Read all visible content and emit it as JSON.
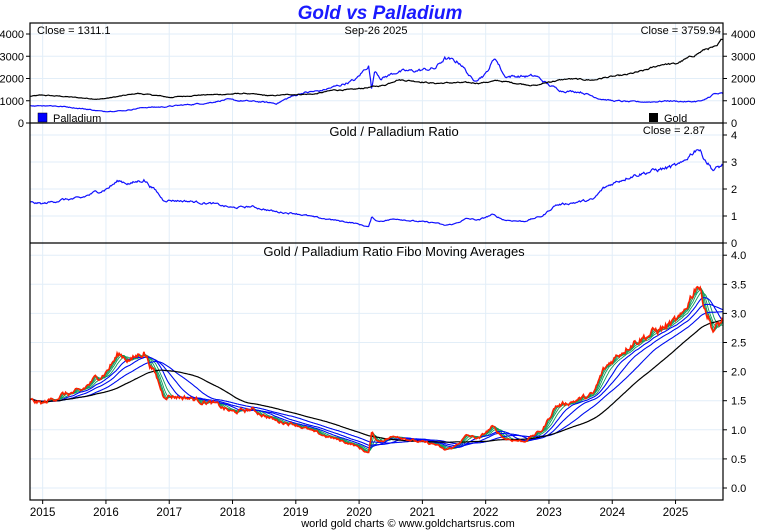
{
  "chart_data": [
    {
      "type": "line",
      "title": "Gold vs Palladium",
      "date_label": "Sep-26  2025",
      "left_close_label": "Close = 1311.1",
      "right_close_label": "Close = 3759.94",
      "x_range": [
        2014.8,
        2025.75
      ],
      "ylim": [
        0,
        4000
      ],
      "yticks": [
        0,
        1000,
        2000,
        3000,
        4000
      ],
      "ytick_labels": [
        "0",
        "1000",
        "2000",
        "3000",
        "4000"
      ],
      "grid": true,
      "legend": [
        {
          "name": "Palladium",
          "color": "#0000ff",
          "position": "bottom-left"
        },
        {
          "name": "Gold",
          "color": "#000000",
          "position": "bottom-right"
        }
      ],
      "series": [
        {
          "name": "Gold",
          "color": "#000000",
          "x": [
            2014.8,
            2015.0,
            2015.3,
            2015.6,
            2015.9,
            2016.1,
            2016.5,
            2016.9,
            2017.0,
            2017.5,
            2017.9,
            2018.2,
            2018.6,
            2018.9,
            2019.3,
            2019.6,
            2019.9,
            2020.2,
            2020.4,
            2020.6,
            2020.9,
            2021.2,
            2021.5,
            2021.9,
            2022.2,
            2022.5,
            2022.8,
            2023.0,
            2023.3,
            2023.7,
            2023.9,
            2024.2,
            2024.5,
            2024.8,
            2025.0,
            2025.3,
            2025.5,
            2025.65,
            2025.74
          ],
          "y": [
            1200,
            1250,
            1200,
            1130,
            1070,
            1150,
            1330,
            1200,
            1150,
            1260,
            1290,
            1330,
            1220,
            1280,
            1300,
            1480,
            1500,
            1620,
            1700,
            1950,
            1880,
            1780,
            1810,
            1800,
            1900,
            1780,
            1680,
            1850,
            1980,
            1930,
            2050,
            2150,
            2350,
            2650,
            2650,
            3050,
            3350,
            3400,
            3760
          ]
        },
        {
          "name": "Palladium",
          "color": "#0000ff",
          "x": [
            2014.8,
            2015.1,
            2015.4,
            2015.7,
            2015.95,
            2016.3,
            2016.6,
            2016.9,
            2017.2,
            2017.6,
            2017.9,
            2018.1,
            2018.4,
            2018.7,
            2018.9,
            2019.1,
            2019.4,
            2019.7,
            2019.95,
            2020.15,
            2020.2,
            2020.25,
            2020.35,
            2020.6,
            2020.9,
            2021.2,
            2021.35,
            2021.6,
            2021.8,
            2022.0,
            2022.15,
            2022.3,
            2022.5,
            2022.8,
            2023.0,
            2023.2,
            2023.5,
            2023.8,
            2024.0,
            2024.3,
            2024.6,
            2024.9,
            2025.2,
            2025.45,
            2025.6,
            2025.74
          ],
          "y": [
            780,
            790,
            720,
            620,
            520,
            560,
            700,
            720,
            800,
            900,
            1050,
            1000,
            960,
            880,
            1150,
            1350,
            1450,
            1700,
            1950,
            2600,
            1500,
            2400,
            2000,
            2300,
            2350,
            2450,
            2900,
            2700,
            1900,
            2200,
            2950,
            2100,
            2100,
            2100,
            1700,
            1450,
            1400,
            1100,
            1000,
            950,
            950,
            1000,
            950,
            1000,
            1300,
            1311
          ]
        }
      ]
    },
    {
      "type": "line",
      "title": "Gold / Palladium Ratio",
      "close_label": "Close = 2.87",
      "ylim": [
        0,
        4.5
      ],
      "yticks": [
        0,
        1,
        2,
        3,
        4
      ],
      "ytick_labels": [
        "0",
        "1",
        "2",
        "3",
        "4"
      ],
      "grid": true,
      "series": [
        {
          "name": "Gold / Palladium Ratio",
          "color": "#0000ff",
          "x": [
            2014.8,
            2015.0,
            2015.3,
            2015.6,
            2015.8,
            2016.0,
            2016.2,
            2016.4,
            2016.6,
            2016.8,
            2016.9,
            2017.3,
            2017.7,
            2018.0,
            2018.3,
            2018.7,
            2019.0,
            2019.3,
            2019.6,
            2019.9,
            2020.15,
            2020.2,
            2020.3,
            2020.6,
            2020.9,
            2021.2,
            2021.35,
            2021.5,
            2021.7,
            2021.9,
            2022.1,
            2022.3,
            2022.6,
            2022.9,
            2023.1,
            2023.4,
            2023.7,
            2023.85,
            2024.0,
            2024.3,
            2024.6,
            2024.9,
            2025.1,
            2025.2,
            2025.35,
            2025.5,
            2025.6,
            2025.74
          ],
          "y": [
            1.5,
            1.45,
            1.6,
            1.65,
            1.85,
            2.0,
            2.3,
            2.2,
            2.35,
            1.9,
            1.6,
            1.55,
            1.45,
            1.3,
            1.35,
            1.15,
            1.1,
            0.95,
            0.85,
            0.75,
            0.6,
            0.95,
            0.8,
            0.9,
            0.8,
            0.75,
            0.65,
            0.7,
            0.9,
            0.85,
            1.05,
            0.85,
            0.8,
            1.0,
            1.4,
            1.5,
            1.6,
            2.0,
            2.2,
            2.5,
            2.65,
            2.8,
            2.9,
            3.2,
            3.55,
            3.0,
            2.7,
            2.87
          ]
        }
      ]
    },
    {
      "type": "line",
      "title": "Gold / Palladium Ratio Fibo Moving Averages",
      "ylim": [
        -0.2,
        4.1
      ],
      "yticks": [
        0.0,
        0.5,
        1.0,
        1.5,
        2.0,
        2.5,
        3.0,
        3.5,
        4.0
      ],
      "ytick_labels": [
        "0.0",
        "0.5",
        "1.0",
        "1.5",
        "2.0",
        "2.5",
        "3.0",
        "3.5",
        "4.0"
      ],
      "grid": true,
      "moving_average_colors": [
        "#0a9a5a",
        "#0000ff",
        "#000000"
      ],
      "price_color": "#ff2000"
    }
  ],
  "x_axis": {
    "tick_labels": [
      "2015",
      "2016",
      "2017",
      "2018",
      "2019",
      "2020",
      "2021",
      "2022",
      "2023",
      "2024",
      "2025"
    ],
    "tick_values": [
      2015,
      2016,
      2017,
      2018,
      2019,
      2020,
      2021,
      2022,
      2023,
      2024,
      2025
    ]
  },
  "footer": "world gold charts © www.goldchartsrus.com"
}
